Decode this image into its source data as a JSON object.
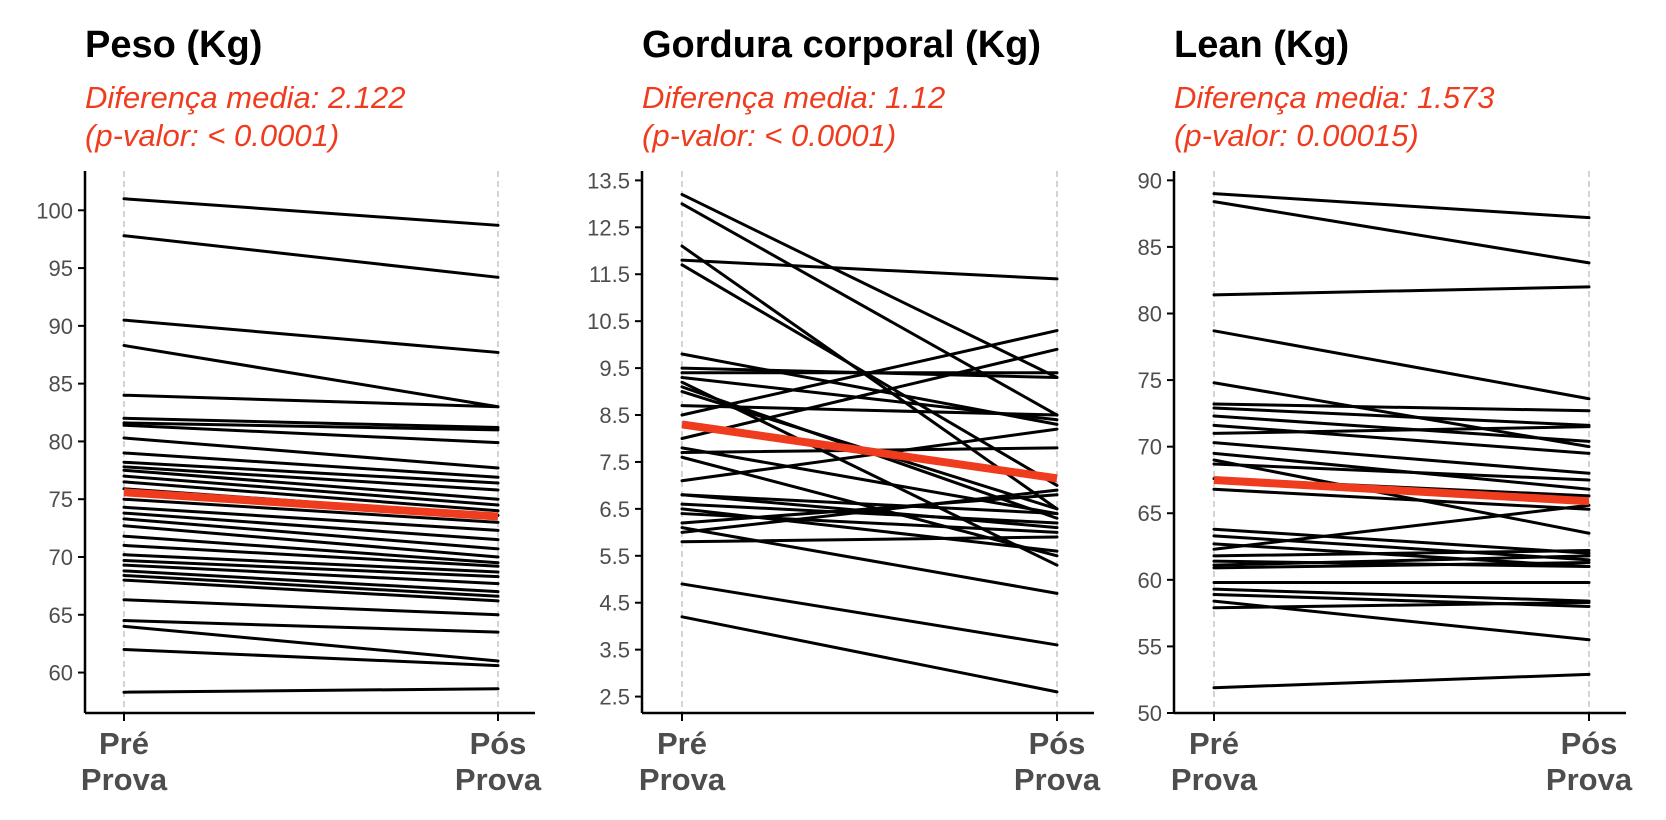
{
  "colors": {
    "subject_line": "#000000",
    "mean_line": "#f03c1e",
    "subtitle": "#f03c1e",
    "axis": "#000000",
    "tick_label": "#4d4d4d",
    "guide_line": "#bdbdbd"
  },
  "chart_data": [
    {
      "type": "line",
      "title": "Peso (Kg)",
      "subtitle": [
        "Diferença media: 2.122",
        "(p-valor: < 0.0001)"
      ],
      "categories": [
        [
          "Pré",
          "Prova"
        ],
        [
          "Pós",
          "Prova"
        ]
      ],
      "ylim": [
        56.5,
        103.4
      ],
      "yticks": [
        60,
        65,
        70,
        75,
        80,
        85,
        90,
        95,
        100
      ],
      "grid": false,
      "legend": "none",
      "subjects": [
        [
          101.0,
          98.7
        ],
        [
          97.8,
          94.2
        ],
        [
          90.5,
          87.7
        ],
        [
          88.3,
          83.0
        ],
        [
          84.0,
          83.0
        ],
        [
          82.0,
          81.2
        ],
        [
          81.6,
          81.0
        ],
        [
          81.4,
          79.9
        ],
        [
          80.3,
          77.7
        ],
        [
          79.0,
          76.9
        ],
        [
          78.2,
          76.4
        ],
        [
          77.8,
          75.8
        ],
        [
          77.5,
          75.0
        ],
        [
          77.0,
          74.5
        ],
        [
          76.5,
          74.0
        ],
        [
          75.9,
          73.6
        ],
        [
          75.0,
          73.0
        ],
        [
          74.3,
          72.3
        ],
        [
          73.8,
          71.5
        ],
        [
          73.3,
          70.7
        ],
        [
          72.7,
          70.0
        ],
        [
          71.8,
          69.5
        ],
        [
          71.0,
          69.2
        ],
        [
          70.2,
          68.7
        ],
        [
          69.7,
          68.3
        ],
        [
          69.3,
          67.7
        ],
        [
          68.8,
          67.0
        ],
        [
          68.4,
          66.6
        ],
        [
          68.0,
          66.2
        ],
        [
          66.3,
          65.0
        ],
        [
          64.5,
          63.5
        ],
        [
          64.0,
          61.0
        ],
        [
          62.0,
          60.6
        ],
        [
          58.3,
          58.6
        ]
      ],
      "mean": [
        75.6,
        73.5
      ]
    },
    {
      "type": "line",
      "title": "Gordura corporal (Kg)",
      "subtitle": [
        "Diferença media: 1.12",
        "(p-valor: < 0.0001)"
      ],
      "categories": [
        [
          "Pré",
          "Prova"
        ],
        [
          "Pós",
          "Prova"
        ]
      ],
      "ylim": [
        2.15,
        13.7
      ],
      "yticks": [
        2.5,
        3.5,
        4.5,
        5.5,
        6.5,
        7.5,
        8.5,
        9.5,
        10.5,
        11.5,
        12.5,
        13.5
      ],
      "grid": false,
      "legend": "none",
      "subjects": [
        [
          13.2,
          9.3
        ],
        [
          13.0,
          8.5
        ],
        [
          12.1,
          6.5
        ],
        [
          11.8,
          11.4
        ],
        [
          11.7,
          7.0
        ],
        [
          9.8,
          8.3
        ],
        [
          9.5,
          9.3
        ],
        [
          9.4,
          9.4
        ],
        [
          9.3,
          8.4
        ],
        [
          9.2,
          5.3
        ],
        [
          9.1,
          6.3
        ],
        [
          9.0,
          6.5
        ],
        [
          8.7,
          8.5
        ],
        [
          8.5,
          10.3
        ],
        [
          8.0,
          9.9
        ],
        [
          7.8,
          6.4
        ],
        [
          7.7,
          7.8
        ],
        [
          7.6,
          5.5
        ],
        [
          7.1,
          8.2
        ],
        [
          6.8,
          6.1
        ],
        [
          6.8,
          6.4
        ],
        [
          6.6,
          6.2
        ],
        [
          6.5,
          5.6
        ],
        [
          6.4,
          6.0
        ],
        [
          6.2,
          6.8
        ],
        [
          6.1,
          4.7
        ],
        [
          6.0,
          6.9
        ],
        [
          5.8,
          5.9
        ],
        [
          4.9,
          3.6
        ],
        [
          4.2,
          2.6
        ]
      ],
      "mean": [
        8.3,
        7.15
      ]
    },
    {
      "type": "line",
      "title": "Lean (Kg)",
      "subtitle": [
        "Diferença media: 1.573",
        "(p-valor: 0.00015)"
      ],
      "categories": [
        [
          "Pré",
          "Prova"
        ],
        [
          "Pós",
          "Prova"
        ]
      ],
      "ylim": [
        50,
        90.7
      ],
      "yticks": [
        50,
        55,
        60,
        65,
        70,
        75,
        80,
        85,
        90
      ],
      "grid": false,
      "legend": "none",
      "subjects": [
        [
          89.0,
          87.2
        ],
        [
          88.4,
          83.8
        ],
        [
          81.4,
          82.0
        ],
        [
          78.7,
          73.6
        ],
        [
          74.8,
          70.0
        ],
        [
          73.2,
          72.7
        ],
        [
          72.9,
          71.6
        ],
        [
          72.3,
          70.4
        ],
        [
          71.6,
          69.5
        ],
        [
          71.0,
          71.5
        ],
        [
          70.3,
          68.0
        ],
        [
          69.5,
          66.8
        ],
        [
          69.0,
          63.5
        ],
        [
          68.7,
          67.5
        ],
        [
          67.6,
          66.3
        ],
        [
          66.8,
          65.3
        ],
        [
          63.8,
          62.0
        ],
        [
          63.3,
          61.5
        ],
        [
          62.7,
          61.0
        ],
        [
          62.3,
          65.6
        ],
        [
          61.8,
          62.2
        ],
        [
          61.4,
          61.0
        ],
        [
          61.1,
          61.8
        ],
        [
          60.9,
          61.3
        ],
        [
          59.8,
          59.8
        ],
        [
          59.3,
          58.4
        ],
        [
          58.9,
          58.0
        ],
        [
          58.4,
          55.5
        ],
        [
          57.9,
          58.3
        ],
        [
          51.9,
          52.9
        ]
      ],
      "mean": [
        67.5,
        65.9
      ]
    }
  ]
}
